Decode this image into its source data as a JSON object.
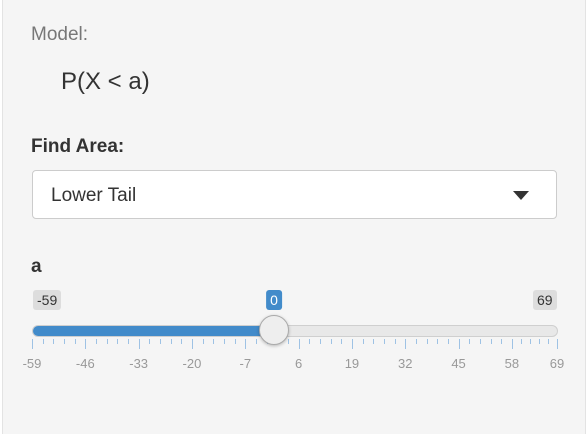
{
  "model": {
    "label": "Model:",
    "formula": "P(X < a)"
  },
  "find_area": {
    "label": "Find Area:",
    "selected": "Lower Tail",
    "icon": "caret-down-icon"
  },
  "slider": {
    "label": "a",
    "min": -59,
    "max": 69,
    "value": 0,
    "min_label": "-59",
    "max_label": "69",
    "value_label": "0",
    "grid_labels": [
      "-59",
      "-46",
      "-33",
      "-20",
      "-7",
      "6",
      "19",
      "32",
      "45",
      "58",
      "69"
    ],
    "bar_color": "#428bca"
  }
}
